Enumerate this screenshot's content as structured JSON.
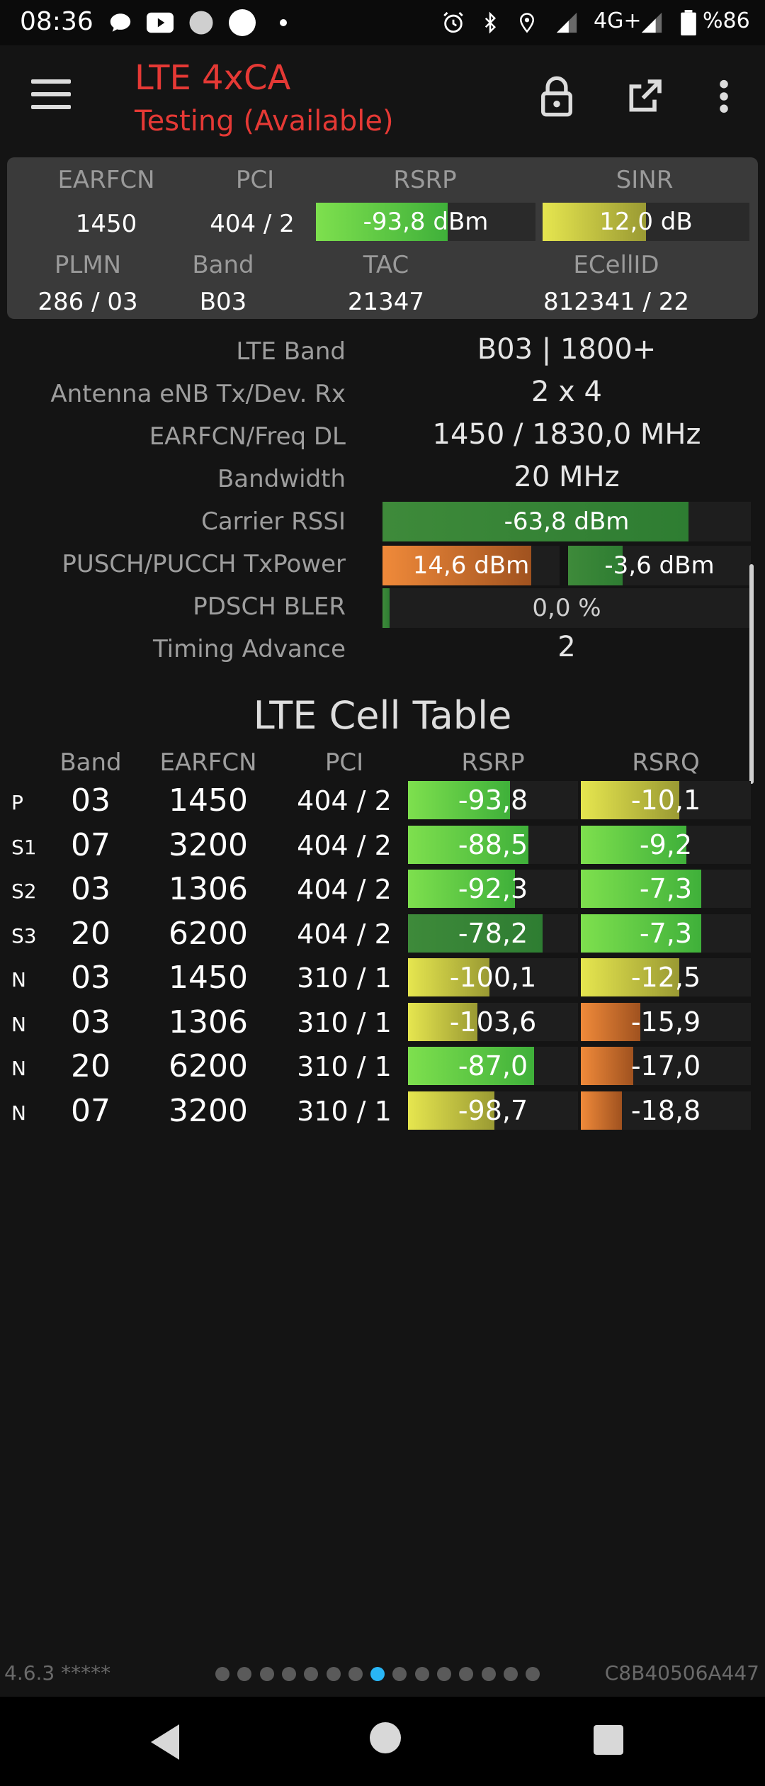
{
  "status": {
    "time": "08:36",
    "network": "4G+",
    "battery": "%86"
  },
  "app": {
    "title": "LTE 4xCA",
    "subtitle": "Testing (Available)"
  },
  "summary": {
    "labels": {
      "earfcn": "EARFCN",
      "pci": "PCI",
      "rsrp": "RSRP",
      "sinr": "SINR",
      "plmn": "PLMN",
      "band": "Band",
      "tac": "TAC",
      "ecellid": "ECellID"
    },
    "earfcn": "1450",
    "pci": "404 / 2",
    "rsrp": {
      "text": "-93,8 dBm",
      "fill": 0.6
    },
    "sinr": {
      "text": "12,0 dB",
      "fill": 0.5
    },
    "plmn": "286 / 03",
    "band": "B03",
    "tac": "21347",
    "ecellid": "812341 / 22"
  },
  "details": {
    "lte_band": {
      "label": "LTE Band",
      "value": "B03 | 1800+"
    },
    "antenna": {
      "label": "Antenna eNB Tx/Dev. Rx",
      "value": "2 x 4"
    },
    "earfcn_freq": {
      "label": "EARFCN/Freq DL",
      "value": "1450 / 1830,0 MHz"
    },
    "bandwidth": {
      "label": "Bandwidth",
      "value": "20 MHz"
    },
    "carrier_rssi": {
      "label": "Carrier RSSI",
      "value": "-63,8 dBm",
      "fill": 0.83
    },
    "txpower": {
      "label": "PUSCH/PUCCH TxPower",
      "pusch": "14,6 dBm",
      "pusch_fill": 0.84,
      "pucch": "-3,6 dBm",
      "pucch_fill": 0.3
    },
    "bler": {
      "label": "PDSCH BLER",
      "value": "0,0 %",
      "fill": 0.02
    },
    "timing_advance": {
      "label": "Timing Advance",
      "value": "2"
    }
  },
  "cell_table": {
    "title": "LTE Cell Table",
    "headers": {
      "band": "Band",
      "earfcn": "EARFCN",
      "pci": "PCI",
      "rsrp": "RSRP",
      "rsrq": "RSRQ"
    },
    "rows": [
      {
        "type": "P",
        "band": "03",
        "earfcn": "1450",
        "pci": "404 / 2",
        "rsrp": "-93,8",
        "rsrp_fill": 0.6,
        "rsrp_color": "g-bright",
        "rsrq": "-10,1",
        "rsrq_fill": 0.58,
        "rsrq_color": "g-yellow"
      },
      {
        "type": "S1",
        "band": "07",
        "earfcn": "3200",
        "pci": "404 / 2",
        "rsrp": "-88,5",
        "rsrp_fill": 0.71,
        "rsrp_color": "g-bright",
        "rsrq": "-9,2",
        "rsrq_fill": 0.62,
        "rsrq_color": "g-bright"
      },
      {
        "type": "S2",
        "band": "03",
        "earfcn": "1306",
        "pci": "404 / 2",
        "rsrp": "-92,3",
        "rsrp_fill": 0.63,
        "rsrp_color": "g-bright",
        "rsrq": "-7,3",
        "rsrq_fill": 0.71,
        "rsrq_color": "g-bright"
      },
      {
        "type": "S3",
        "band": "20",
        "earfcn": "6200",
        "pci": "404 / 2",
        "rsrp": "-78,2",
        "rsrp_fill": 0.79,
        "rsrp_color": "g-dark",
        "rsrq": "-7,3",
        "rsrq_fill": 0.71,
        "rsrq_color": "g-bright"
      },
      {
        "type": "N",
        "band": "03",
        "earfcn": "1450",
        "pci": "310 / 1",
        "rsrp": "-100,1",
        "rsrp_fill": 0.48,
        "rsrp_color": "g-yellow",
        "rsrq": "-12,5",
        "rsrq_fill": 0.58,
        "rsrq_color": "g-yellow"
      },
      {
        "type": "N",
        "band": "03",
        "earfcn": "1306",
        "pci": "310 / 1",
        "rsrp": "-103,6",
        "rsrp_fill": 0.41,
        "rsrp_color": "g-yellow",
        "rsrq": "-15,9",
        "rsrq_fill": 0.35,
        "rsrq_color": "g-orange"
      },
      {
        "type": "N",
        "band": "20",
        "earfcn": "6200",
        "pci": "310 / 1",
        "rsrp": "-87,0",
        "rsrp_fill": 0.74,
        "rsrp_color": "g-bright",
        "rsrq": "-17,0",
        "rsrq_fill": 0.31,
        "rsrq_color": "g-orange"
      },
      {
        "type": "N",
        "band": "07",
        "earfcn": "3200",
        "pci": "310 / 1",
        "rsrp": "-98,7",
        "rsrp_fill": 0.51,
        "rsrp_color": "g-yellow",
        "rsrq": "-18,8",
        "rsrq_fill": 0.24,
        "rsrq_color": "g-orange"
      }
    ]
  },
  "footer": {
    "version": "4.6.3 *****",
    "device_id": "C8B40506A447",
    "page_count": 15,
    "active_page": 7
  },
  "icons": [
    "chat-icon",
    "youtube-icon",
    "circle-icon",
    "alarm-icon",
    "bluetooth-icon",
    "location-icon",
    "signal-icon",
    "battery-icon",
    "menu-icon",
    "lock-icon",
    "open-external-icon",
    "more-vert-icon",
    "back-icon",
    "home-icon",
    "recents-icon"
  ]
}
